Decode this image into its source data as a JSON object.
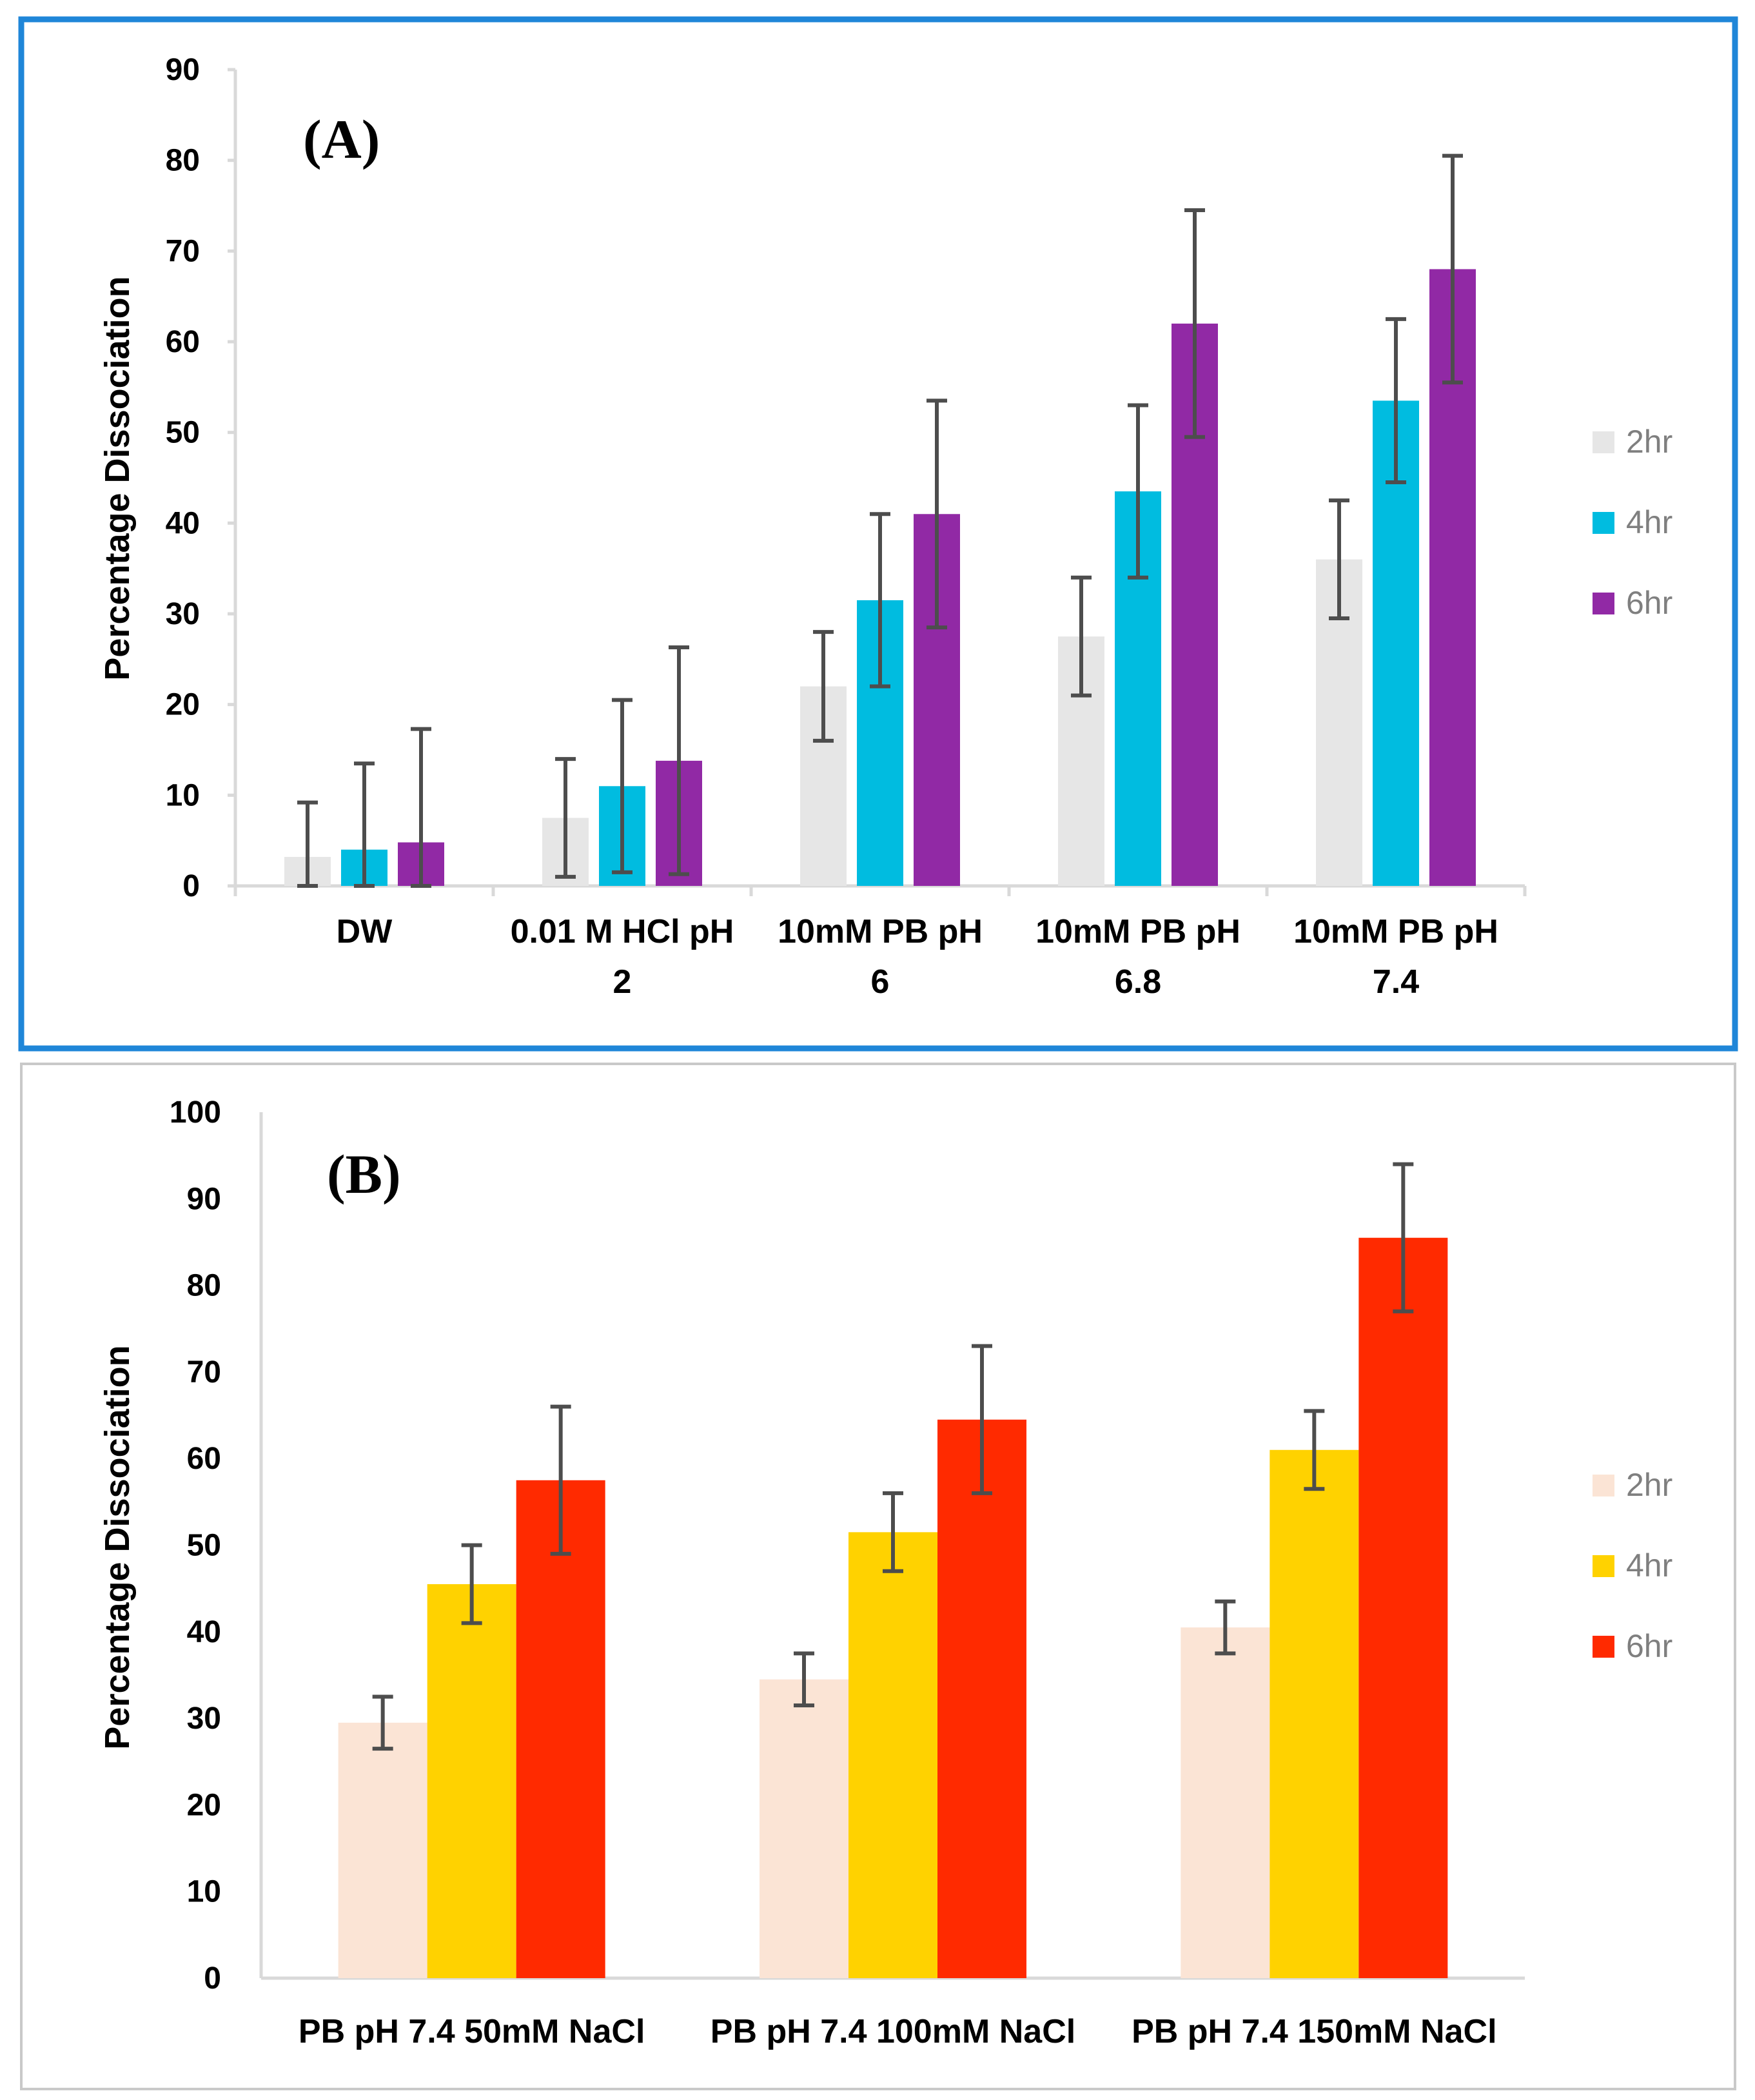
{
  "chart_data": [
    {
      "type": "bar",
      "panel_label": "(A)",
      "ylabel": "Percentage Dissociation",
      "xlabel": "",
      "ylim": [
        0,
        90
      ],
      "yticks": [
        "0",
        "10",
        "20",
        "30",
        "40",
        "50",
        "60",
        "70",
        "80",
        "90"
      ],
      "categories": [
        [
          "DW"
        ],
        [
          "0.01 M HCl pH",
          "2"
        ],
        [
          "10mM PB pH",
          "6"
        ],
        [
          "10mM PB pH",
          "6.8"
        ],
        [
          "10mM PB pH",
          "7.4"
        ]
      ],
      "series": [
        {
          "name": "2hr",
          "color": "#e6e6e6",
          "values": [
            3.2,
            7.5,
            22,
            27.5,
            36
          ],
          "errors": [
            6,
            6.5,
            6,
            6.5,
            6.5
          ]
        },
        {
          "name": "4hr",
          "color": "#00bce0",
          "values": [
            4,
            11,
            31.5,
            43.5,
            53.5
          ],
          "errors": [
            9.5,
            9.5,
            9.5,
            9.5,
            9
          ]
        },
        {
          "name": "6hr",
          "color": "#9129a5",
          "values": [
            4.8,
            13.8,
            41,
            62,
            68
          ],
          "errors": [
            12.5,
            12.5,
            12.5,
            12.5,
            12.5
          ]
        }
      ],
      "legend": "right"
    },
    {
      "type": "bar",
      "panel_label": "(B)",
      "ylabel": "Percentage Dissociation",
      "xlabel": "",
      "ylim": [
        0,
        100
      ],
      "yticks": [
        "0",
        "10",
        "20",
        "30",
        "40",
        "50",
        "60",
        "70",
        "80",
        "90",
        "100"
      ],
      "categories": [
        [
          "PB pH 7.4 50mM NaCl"
        ],
        [
          "PB pH 7.4 100mM NaCl"
        ],
        [
          "PB pH 7.4 150mM NaCl"
        ]
      ],
      "series": [
        {
          "name": "2hr",
          "color": "#fbe4d5",
          "values": [
            29.5,
            34.5,
            40.5
          ],
          "errors": [
            3,
            3,
            3
          ]
        },
        {
          "name": "4hr",
          "color": "#ffd200",
          "values": [
            45.5,
            51.5,
            61
          ],
          "errors": [
            4.5,
            4.5,
            4.5
          ]
        },
        {
          "name": "6hr",
          "color": "#ff2a00",
          "values": [
            57.5,
            64.5,
            85.5
          ],
          "errors": [
            8.5,
            8.5,
            8.5
          ]
        }
      ],
      "legend": "right"
    }
  ]
}
